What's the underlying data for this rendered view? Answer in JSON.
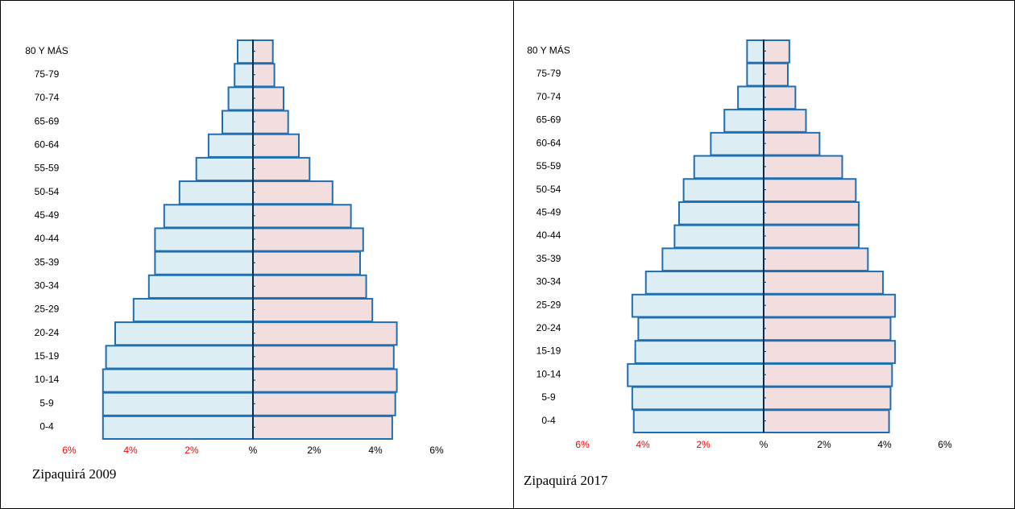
{
  "chart_data": [
    {
      "type": "pyramid",
      "caption": "Zipaquirá 2009",
      "categories": [
        "0-4",
        "5-9",
        "10-14",
        "15-19",
        "20-24",
        "25-29",
        "30-34",
        "35-39",
        "40-44",
        "45-49",
        "50-54",
        "55-59",
        "60-64",
        "65-69",
        "70-74",
        "75-79",
        "80 Y MÁS"
      ],
      "series": [
        {
          "color": "#dcedf4",
          "values": [
            4.9,
            4.9,
            4.9,
            4.8,
            4.5,
            3.9,
            3.4,
            3.2,
            3.2,
            2.9,
            2.4,
            1.85,
            1.45,
            1.0,
            0.8,
            0.6,
            0.5
          ]
        },
        {
          "color": "#f2dede",
          "values": [
            4.55,
            4.65,
            4.7,
            4.6,
            4.7,
            3.9,
            3.7,
            3.5,
            3.6,
            3.2,
            2.6,
            1.85,
            1.5,
            1.15,
            1.0,
            0.7,
            0.65
          ]
        }
      ],
      "bar_edge_color": "#1f6fb2",
      "axis_color": "#0b2a4a",
      "negative_tick_color": "#ff0000",
      "xlim": [
        -6,
        6
      ],
      "xticks": [
        {
          "value": -6,
          "label": "6%"
        },
        {
          "value": -4,
          "label": "4%"
        },
        {
          "value": -2,
          "label": "2%"
        },
        {
          "value": 0,
          "label": "%"
        },
        {
          "value": 2,
          "label": "2%"
        },
        {
          "value": 4,
          "label": "4%"
        },
        {
          "value": 6,
          "label": "6%"
        }
      ]
    },
    {
      "type": "pyramid",
      "caption": "Zipaquirá 2017",
      "categories": [
        "0-4",
        "5-9",
        "10-14",
        "15-19",
        "20-24",
        "25-29",
        "30-34",
        "35-39",
        "40-44",
        "45-49",
        "50-54",
        "55-59",
        "60-64",
        "65-69",
        "70-74",
        "75-79",
        "80 Y MÁS"
      ],
      "series": [
        {
          "color": "#dcedf4",
          "values": [
            4.3,
            4.35,
            4.5,
            4.25,
            4.15,
            4.35,
            3.9,
            3.35,
            2.95,
            2.8,
            2.65,
            2.3,
            1.75,
            1.3,
            0.85,
            0.55,
            0.55
          ]
        },
        {
          "color": "#f2dede",
          "values": [
            4.15,
            4.2,
            4.25,
            4.35,
            4.2,
            4.35,
            3.95,
            3.45,
            3.15,
            3.15,
            3.05,
            2.6,
            1.85,
            1.4,
            1.05,
            0.8,
            0.85
          ]
        }
      ],
      "bar_edge_color": "#1f6fb2",
      "axis_color": "#0b2a4a",
      "negative_tick_color": "#ff0000",
      "xlim": [
        -6,
        6
      ],
      "xticks": [
        {
          "value": -6,
          "label": "6%"
        },
        {
          "value": -4,
          "label": "4%"
        },
        {
          "value": -2,
          "label": "2%"
        },
        {
          "value": 0,
          "label": "%"
        },
        {
          "value": 2,
          "label": "2%"
        },
        {
          "value": 4,
          "label": "4%"
        },
        {
          "value": 6,
          "label": "6%"
        }
      ]
    }
  ]
}
